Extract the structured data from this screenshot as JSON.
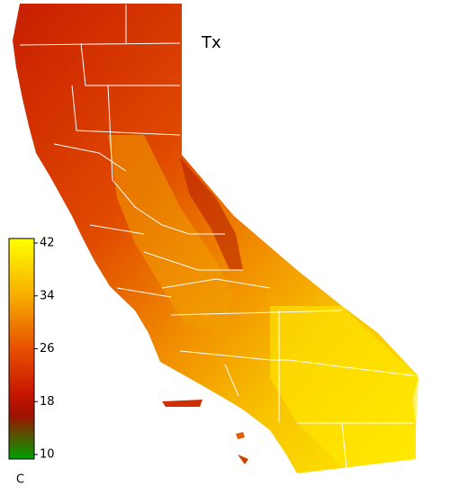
{
  "map": {
    "title": "Tx",
    "colorbar": {
      "unit": "C",
      "lim": [
        10,
        42
      ],
      "ticks": [
        10,
        18,
        26,
        34,
        42
      ]
    }
  }
}
